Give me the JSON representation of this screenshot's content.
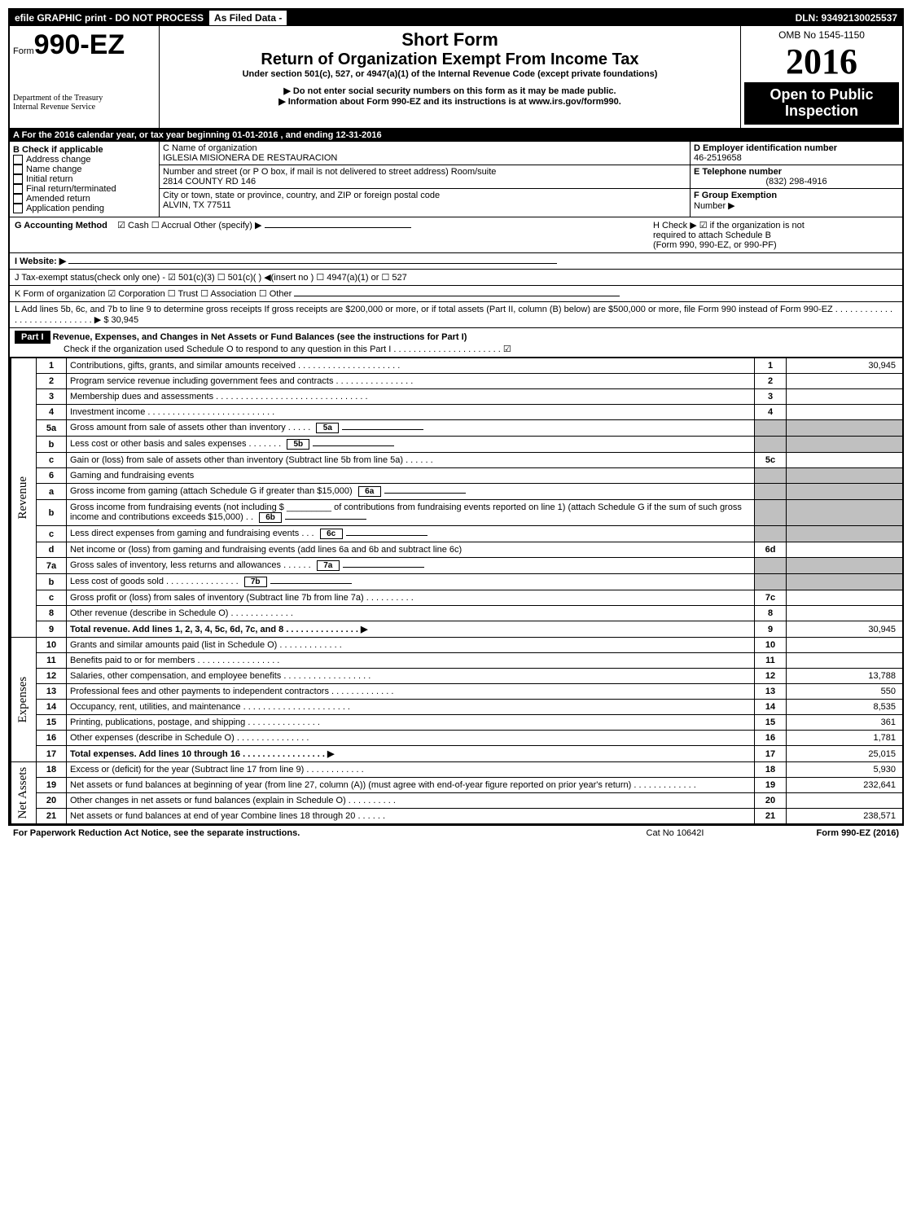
{
  "topbar": {
    "left": "efile GRAPHIC print - DO NOT PROCESS",
    "mid": "As Filed Data -",
    "dln": "DLN: 93492130025537"
  },
  "header": {
    "form_prefix": "Form",
    "form_number": "990-EZ",
    "short_form": "Short Form",
    "main_title": "Return of Organization Exempt From Income Tax",
    "under_section": "Under section 501(c), 527, or 4947(a)(1) of the Internal Revenue Code (except private foundations)",
    "warn_line1": "▶ Do not enter social security numbers on this form as it may be made public.",
    "warn_line2": "▶ Information about Form 990-EZ and its instructions is at www.irs.gov/form990.",
    "dept1": "Department of the Treasury",
    "dept2": "Internal Revenue Service",
    "omb": "OMB No 1545-1150",
    "year": "2016",
    "open_public1": "Open to Public",
    "open_public2": "Inspection"
  },
  "section_a": {
    "line_a": "A  For the 2016 calendar year, or tax year beginning 01-01-2016          , and ending 12-31-2016",
    "b_label": "B  Check if applicable",
    "b_items": [
      "Address change",
      "Name change",
      "Initial return",
      "Final return/terminated",
      "Amended return",
      "Application pending"
    ],
    "c_label": "C Name of organization",
    "c_name": "IGLESIA MISIONERA DE RESTAURACION",
    "c_street_label": "Number and street (or P O box, if mail is not delivered to street address)  Room/suite",
    "c_street": "2814 COUNTY RD 146",
    "c_city_label": "City or town, state or province, country, and ZIP or foreign postal code",
    "c_city": "ALVIN, TX  77511",
    "d_label": "D Employer identification number",
    "d_val": "46-2519658",
    "e_label": "E Telephone number",
    "e_val": "(832) 298-4916",
    "f_label": "F Group Exemption",
    "f_val": "Number   ▶"
  },
  "section_g": {
    "g_label": "G Accounting Method",
    "g_opts": "☑ Cash   ☐ Accrual   Other (specify) ▶",
    "h_label": "H   Check ▶   ☑  if the organization is not",
    "h_sub1": "required to attach Schedule B",
    "h_sub2": "(Form 990, 990-EZ, or 990-PF)",
    "i_label": "I Website: ▶",
    "j_label": "J Tax-exempt status(check only one) -  ☑ 501(c)(3)  ☐  501(c)(  ) ◀(insert no ) ☐ 4947(a)(1) or ☐ 527",
    "k_label": "K Form of organization    ☑ Corporation  ☐ Trust  ☐ Association  ☐ Other",
    "l_label": "L Add lines 5b, 6c, and 7b to line 9 to determine gross receipts  If gross receipts are $200,000 or more, or if total assets (Part II, column (B) below) are $500,000 or more, file Form 990 instead of Form 990-EZ  . . . . . . . . . . . . . . . . . . . . . . . . . . . . ▶ $ 30,945"
  },
  "part1": {
    "header": "Part I",
    "title": "Revenue, Expenses, and Changes in Net Assets or Fund Balances (see the instructions for Part I)",
    "check_line": "Check if the organization used Schedule O to respond to any question in this Part I . . . . . . . . . . . . . . . . . . . . . .  ☑"
  },
  "side_labels": {
    "revenue": "Revenue",
    "expenses": "Expenses",
    "netassets": "Net Assets"
  },
  "lines": [
    {
      "n": "1",
      "desc": "Contributions, gifts, grants, and similar amounts received  . . . . . . . . . . . . . . . . . . . . .",
      "box": "1",
      "amt": "30,945"
    },
    {
      "n": "2",
      "desc": "Program service revenue including government fees and contracts  . . . . . . . . . . . . . . . .",
      "box": "2",
      "amt": ""
    },
    {
      "n": "3",
      "desc": "Membership dues and assessments  . . . . . . . . . . . . . . . . . . . . . . . . . . . . . . .",
      "box": "3",
      "amt": ""
    },
    {
      "n": "4",
      "desc": "Investment income  . . . . . . . . . . . . . . . . . . . . . . . . . .",
      "box": "4",
      "amt": ""
    },
    {
      "n": "5a",
      "desc": "Gross amount from sale of assets other than inventory  . . . . .",
      "inline": "5a",
      "box": "",
      "amt": "",
      "grey": true
    },
    {
      "n": "b",
      "desc": "Less  cost or other basis and sales expenses  . . . . . . .",
      "inline": "5b",
      "box": "",
      "amt": "",
      "grey": true
    },
    {
      "n": "c",
      "desc": "Gain or (loss) from sale of assets other than inventory (Subtract line 5b from line 5a) . . . . . .",
      "box": "5c",
      "amt": ""
    },
    {
      "n": "6",
      "desc": "Gaming and fundraising events",
      "box": "",
      "amt": "",
      "grey": true
    },
    {
      "n": "a",
      "desc": "Gross income from gaming (attach Schedule G if greater than $15,000)",
      "inline": "6a",
      "box": "",
      "amt": "",
      "grey": true
    },
    {
      "n": "b",
      "desc": "Gross income from fundraising events (not including $ _________ of contributions from fundraising events reported on line 1) (attach Schedule G if the sum of such gross income and contributions exceeds $15,000)   . .",
      "inline": "6b",
      "box": "",
      "amt": "",
      "grey": true
    },
    {
      "n": "c",
      "desc": "Less  direct expenses from gaming and fundraising events    . . .",
      "inline": "6c",
      "box": "",
      "amt": "",
      "grey": true
    },
    {
      "n": "d",
      "desc": "Net income or (loss) from gaming and fundraising events (add lines 6a and 6b and subtract line 6c)",
      "box": "6d",
      "amt": ""
    },
    {
      "n": "7a",
      "desc": "Gross sales of inventory, less returns and allowances  . . . . . .",
      "inline": "7a",
      "box": "",
      "amt": "",
      "grey": true
    },
    {
      "n": "b",
      "desc": "Less  cost of goods sold        . . . . . . . . . . . . . . .",
      "inline": "7b",
      "box": "",
      "amt": "",
      "grey": true
    },
    {
      "n": "c",
      "desc": "Gross profit or (loss) from sales of inventory (Subtract line 7b from line 7a) . . . . . . . . . .",
      "box": "7c",
      "amt": ""
    },
    {
      "n": "8",
      "desc": "Other revenue (describe in Schedule O)                    . . . . . . . . . . . . .",
      "box": "8",
      "amt": ""
    },
    {
      "n": "9",
      "desc": "Total revenue. Add lines 1, 2, 3, 4, 5c, 6d, 7c, and 8  . . . . . . . . . . . . . . .   ▶",
      "box": "9",
      "amt": "30,945",
      "bold": true
    }
  ],
  "expense_lines": [
    {
      "n": "10",
      "desc": "Grants and similar amounts paid (list in Schedule O)        . . . . . . . . . . . . .",
      "box": "10",
      "amt": ""
    },
    {
      "n": "11",
      "desc": "Benefits paid to or for members                . . . . . . . . . . . . . . . . .",
      "box": "11",
      "amt": ""
    },
    {
      "n": "12",
      "desc": "Salaries, other compensation, and employee benefits  . . . . . . . . . . . . . . . . . .",
      "box": "12",
      "amt": "13,788"
    },
    {
      "n": "13",
      "desc": "Professional fees and other payments to independent contractors  . . . . . . . . . . . . .",
      "box": "13",
      "amt": "550"
    },
    {
      "n": "14",
      "desc": "Occupancy, rent, utilities, and maintenance  . . . . . . . . . . . . . . . . . . . . . .",
      "box": "14",
      "amt": "8,535"
    },
    {
      "n": "15",
      "desc": "Printing, publications, postage, and shipping          . . . . . . . . . . . . . . .",
      "box": "15",
      "amt": "361"
    },
    {
      "n": "16",
      "desc": "Other expenses (describe in Schedule O)              . . . . . . . . . . . . . . .",
      "box": "16",
      "amt": "1,781"
    },
    {
      "n": "17",
      "desc": "Total expenses. Add lines 10 through 16        . . . . . . . . . . . . . . . . .   ▶",
      "box": "17",
      "amt": "25,015",
      "bold": true
    }
  ],
  "netasset_lines": [
    {
      "n": "18",
      "desc": "Excess or (deficit) for the year (Subtract line 17 from line 9)      . . . . . . . . . . . .",
      "box": "18",
      "amt": "5,930"
    },
    {
      "n": "19",
      "desc": "Net assets or fund balances at beginning of year (from line 27, column (A)) (must agree with end-of-year figure reported on prior year's return)          . . . . . . . . . . . . .",
      "box": "19",
      "amt": "232,641"
    },
    {
      "n": "20",
      "desc": "Other changes in net assets or fund balances (explain in Schedule O)    . . . . . . . . . .",
      "box": "20",
      "amt": ""
    },
    {
      "n": "21",
      "desc": "Net assets or fund balances at end of year  Combine lines 18 through 20      . . . . . .",
      "box": "21",
      "amt": "238,571"
    }
  ],
  "footer": {
    "left": "For Paperwork Reduction Act Notice, see the separate instructions.",
    "mid": "Cat No  10642I",
    "right": "Form 990-EZ (2016)"
  }
}
